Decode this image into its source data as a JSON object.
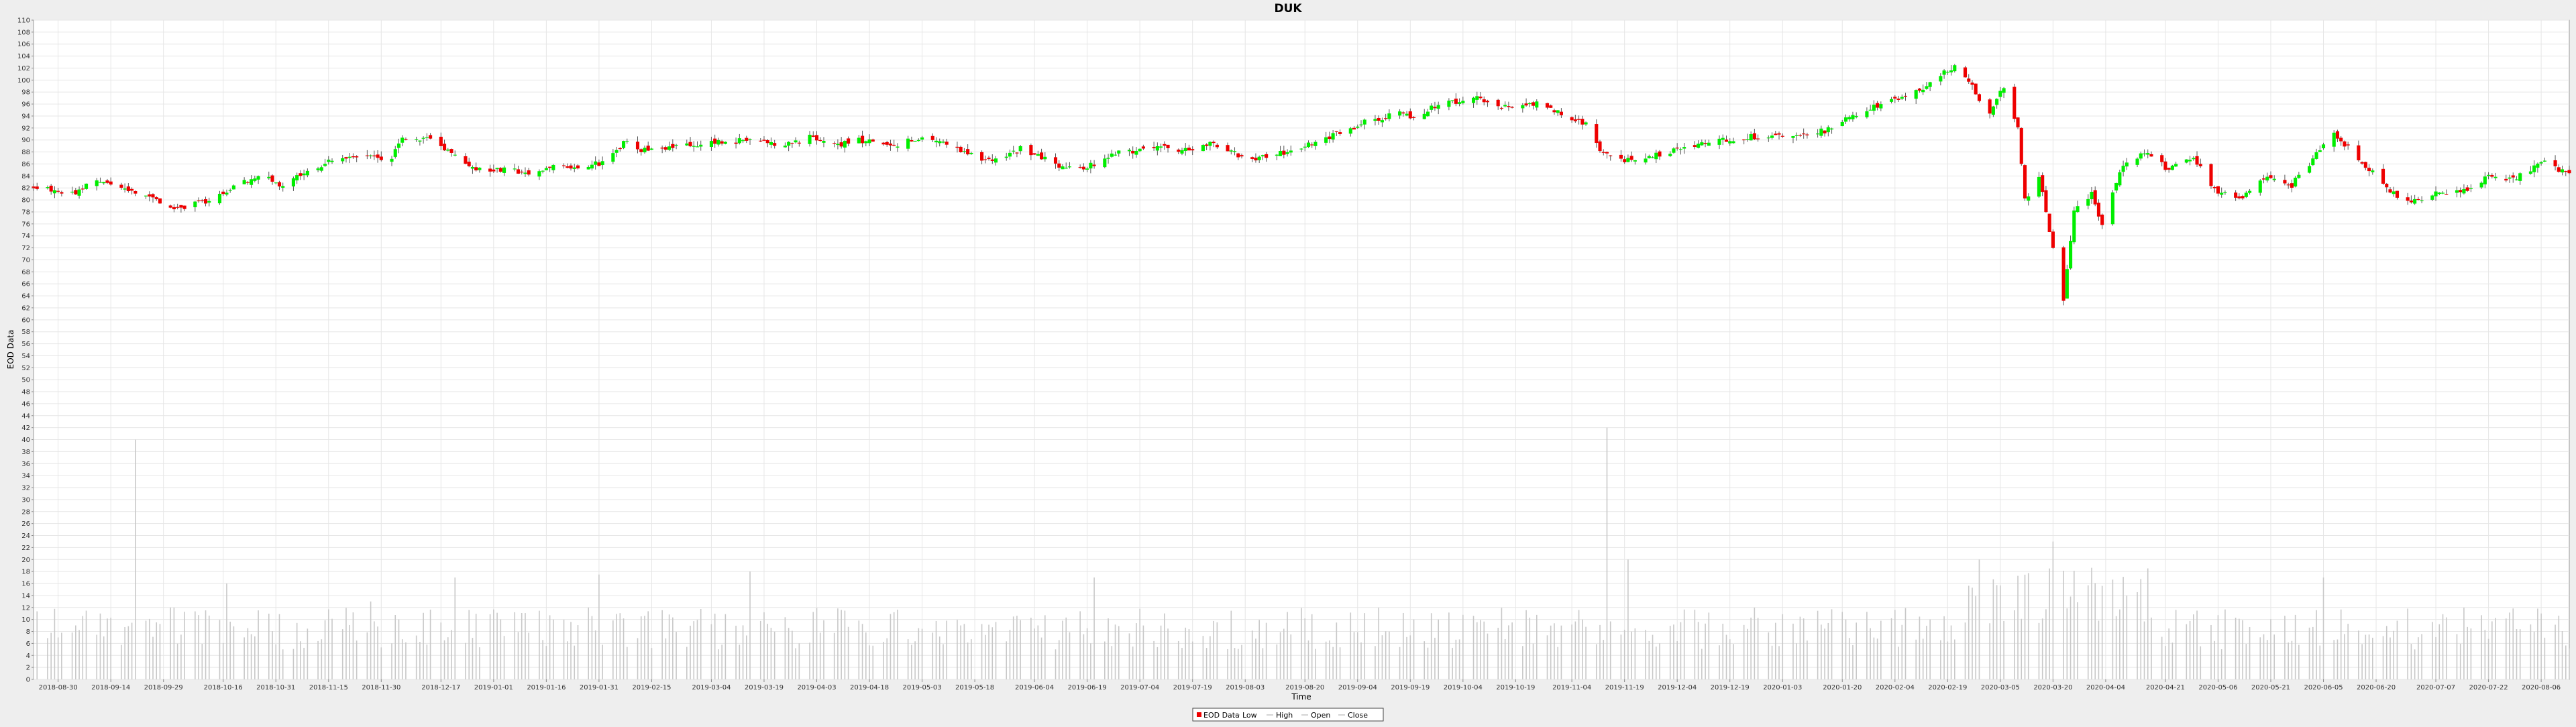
{
  "chart_data": {
    "type": "candlestick",
    "title": "DUK",
    "xlabel": "Time",
    "ylabel": "EOD Data",
    "ylim": [
      0,
      110
    ],
    "y_ticks": [
      0,
      2,
      4,
      6,
      8,
      10,
      12,
      14,
      16,
      18,
      20,
      22,
      24,
      26,
      28,
      30,
      32,
      34,
      36,
      38,
      40,
      42,
      44,
      46,
      48,
      50,
      52,
      54,
      56,
      58,
      60,
      62,
      64,
      66,
      68,
      70,
      72,
      74,
      76,
      78,
      80,
      82,
      84,
      86,
      88,
      90,
      92,
      94,
      96,
      98,
      100,
      102,
      104,
      106,
      108,
      110
    ],
    "x_range": [
      "2018-08-23",
      "2020-08-14"
    ],
    "x_ticks": [
      "2018-08-30",
      "2018-09-14",
      "2018-09-29",
      "2018-10-16",
      "2018-10-31",
      "2018-11-15",
      "2018-11-30",
      "2018-12-17",
      "2019-01-01",
      "2019-01-16",
      "2019-01-31",
      "2019-02-15",
      "2019-03-04",
      "2019-03-19",
      "2019-04-03",
      "2019-04-18",
      "2019-05-03",
      "2019-05-18",
      "2019-06-04",
      "2019-06-19",
      "2019-07-04",
      "2019-07-19",
      "2019-08-03",
      "2019-08-20",
      "2019-09-04",
      "2019-09-19",
      "2019-10-04",
      "2019-10-19",
      "2019-11-04",
      "2019-11-19",
      "2019-12-04",
      "2019-12-19",
      "2020-01-03",
      "2020-01-20",
      "2020-02-04",
      "2020-02-19",
      "2020-03-05",
      "2020-03-20",
      "2020-04-04",
      "2020-04-21",
      "2020-05-06",
      "2020-05-21",
      "2020-06-05",
      "2020-06-20",
      "2020-07-07",
      "2020-07-22",
      "2020-08-06"
    ],
    "legend": [
      "EOD Data",
      "Low",
      "High",
      "Open",
      "Close"
    ],
    "legend_position": "bottom",
    "grid": true,
    "up_color": "#00ee00",
    "down_color": "#ee0000",
    "volume_color": "#c8c8c8",
    "close_path": [
      [
        "2018-08-23",
        82.0
      ],
      [
        "2018-09-04",
        81.0
      ],
      [
        "2018-09-10",
        83.5
      ],
      [
        "2018-09-17",
        82.0
      ],
      [
        "2018-09-26",
        80.0
      ],
      [
        "2018-10-02",
        78.5
      ],
      [
        "2018-10-12",
        80.0
      ],
      [
        "2018-10-19",
        82.0
      ],
      [
        "2018-10-26",
        84.0
      ],
      [
        "2018-11-02",
        82.5
      ],
      [
        "2018-11-16",
        86.5
      ],
      [
        "2018-11-21",
        87.5
      ],
      [
        "2018-12-03",
        87.0
      ],
      [
        "2018-12-06",
        90.0
      ],
      [
        "2018-12-13",
        90.5
      ],
      [
        "2018-12-19",
        88.0
      ],
      [
        "2018-12-27",
        85.0
      ],
      [
        "2019-01-04",
        85.0
      ],
      [
        "2019-01-10",
        84.5
      ],
      [
        "2019-01-18",
        85.5
      ],
      [
        "2019-02-01",
        86.0
      ],
      [
        "2019-02-07",
        89.5
      ],
      [
        "2019-02-14",
        88.0
      ],
      [
        "2019-02-22",
        89.0
      ],
      [
        "2019-03-04",
        89.5
      ],
      [
        "2019-03-15",
        90.0
      ],
      [
        "2019-03-25",
        89.0
      ],
      [
        "2019-04-01",
        90.5
      ],
      [
        "2019-04-08",
        89.0
      ],
      [
        "2019-04-15",
        90.0
      ],
      [
        "2019-04-24",
        89.0
      ],
      [
        "2019-05-03",
        90.5
      ],
      [
        "2019-05-15",
        88.0
      ],
      [
        "2019-05-22",
        86.5
      ],
      [
        "2019-05-31",
        88.5
      ],
      [
        "2019-06-10",
        86.0
      ],
      [
        "2019-06-17",
        85.0
      ],
      [
        "2019-06-26",
        87.5
      ],
      [
        "2019-07-08",
        89.0
      ],
      [
        "2019-07-15",
        88.0
      ],
      [
        "2019-07-24",
        89.5
      ],
      [
        "2019-08-05",
        86.5
      ],
      [
        "2019-08-14",
        88.0
      ],
      [
        "2019-08-23",
        89.5
      ],
      [
        "2019-09-06",
        93.0
      ],
      [
        "2019-09-16",
        94.5
      ],
      [
        "2019-09-20",
        93.5
      ],
      [
        "2019-09-27",
        96.0
      ],
      [
        "2019-10-07",
        97.0
      ],
      [
        "2019-10-16",
        95.5
      ],
      [
        "2019-10-25",
        96.0
      ],
      [
        "2019-11-01",
        94.5
      ],
      [
        "2019-11-08",
        92.5
      ],
      [
        "2019-11-12",
        88.0
      ],
      [
        "2019-11-20",
        86.5
      ],
      [
        "2019-12-02",
        88.0
      ],
      [
        "2019-12-11",
        89.5
      ],
      [
        "2019-12-23",
        90.5
      ],
      [
        "2020-01-02",
        90.5
      ],
      [
        "2020-01-15",
        91.5
      ],
      [
        "2020-01-22",
        94.0
      ],
      [
        "2020-02-05",
        97.0
      ],
      [
        "2020-02-12",
        98.5
      ],
      [
        "2020-02-21",
        102.5
      ],
      [
        "2020-02-26",
        99.0
      ],
      [
        "2020-03-02",
        94.0
      ],
      [
        "2020-03-06",
        99.0
      ],
      [
        "2020-03-10",
        92.0
      ],
      [
        "2020-03-12",
        80.0
      ],
      [
        "2020-03-16",
        84.0
      ],
      [
        "2020-03-20",
        72.0
      ],
      [
        "2020-03-23",
        63.0
      ],
      [
        "2020-03-26",
        78.0
      ],
      [
        "2020-03-31",
        81.0
      ],
      [
        "2020-04-03",
        76.0
      ],
      [
        "2020-04-08",
        85.0
      ],
      [
        "2020-04-15",
        88.0
      ],
      [
        "2020-04-22",
        85.0
      ],
      [
        "2020-04-29",
        87.0
      ],
      [
        "2020-05-06",
        81.0
      ],
      [
        "2020-05-13",
        80.5
      ],
      [
        "2020-05-20",
        84.0
      ],
      [
        "2020-05-27",
        82.5
      ],
      [
        "2020-06-03",
        87.5
      ],
      [
        "2020-06-08",
        91.0
      ],
      [
        "2020-06-15",
        87.0
      ],
      [
        "2020-06-22",
        82.5
      ],
      [
        "2020-06-29",
        79.5
      ],
      [
        "2020-07-07",
        81.0
      ],
      [
        "2020-07-15",
        81.5
      ],
      [
        "2020-07-22",
        84.0
      ],
      [
        "2020-07-29",
        83.5
      ],
      [
        "2020-08-04",
        85.5
      ],
      [
        "2020-08-07",
        86.5
      ],
      [
        "2020-08-14",
        84.0
      ]
    ],
    "volume_spikes": [
      [
        "2018-09-21",
        40.0
      ],
      [
        "2018-10-17",
        16.0
      ],
      [
        "2018-11-27",
        13.0
      ],
      [
        "2018-12-21",
        17.0
      ],
      [
        "2019-01-31",
        17.5
      ],
      [
        "2019-03-15",
        18.0
      ],
      [
        "2019-06-21",
        17.0
      ],
      [
        "2019-11-14",
        42.0
      ],
      [
        "2019-11-20",
        20.0
      ],
      [
        "2020-02-28",
        20.0
      ],
      [
        "2020-03-20",
        23.0
      ],
      [
        "2020-06-05",
        17.0
      ]
    ]
  }
}
